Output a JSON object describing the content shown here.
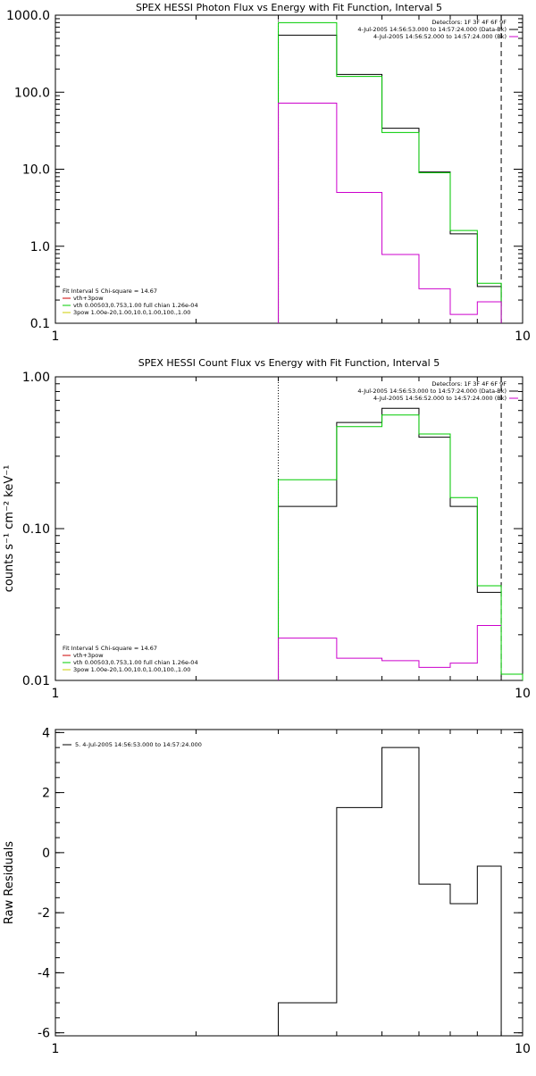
{
  "chart_data": [
    {
      "type": "line",
      "title": "SPEX HESSI Photon Flux vs Energy with Fit Function, Interval 5",
      "xscale": "log",
      "yscale": "log",
      "xlim": [
        1,
        10
      ],
      "ylim": [
        0.1,
        1000
      ],
      "x_ticks": [
        1,
        10
      ],
      "x_tick_labels": [
        "1",
        "10"
      ],
      "y_ticks": [
        0.1,
        1,
        10,
        100,
        1000
      ],
      "y_tick_labels": [
        "0.1",
        "1.0",
        "10.0",
        "100.0",
        "1000.0"
      ],
      "xlabel": "",
      "ylabel": "",
      "bin_edges": [
        3,
        4,
        5,
        6,
        7,
        8,
        9
      ],
      "fit_range_start": 3,
      "fit_range_end": 9,
      "legend_top_right": [
        "Detectors: 1F 3F 4F 6F 9F",
        "4-Jul-2005 14:56:53.000 to 14:57:24.000 (Data-Bk)",
        "4-Jul-2005 14:56:52.000 to 14:57:24.000 (Bk)"
      ],
      "legend_bottom_left": [
        "Fit Interval  5   Chi-square = 14.67",
        "vth+3pow",
        "vth 0.00503,0.753,1.00  full chian 1.26e-04",
        "3pow 1.00e-20,1.00,10.0,1.00,100.,1.00"
      ],
      "series": [
        {
          "name": "Data-Bk",
          "color": "#000000",
          "values": [
            550,
            170,
            34,
            9.2,
            1.45,
            0.3
          ]
        },
        {
          "name": "vth+3pow",
          "color": "#00cc00",
          "values": [
            800,
            160,
            30,
            9.0,
            1.6,
            0.33
          ]
        },
        {
          "name": "Bk",
          "color": "#cc00cc",
          "values": [
            72,
            5.0,
            0.78,
            0.28,
            0.13,
            0.19
          ]
        }
      ]
    },
    {
      "type": "line",
      "title": "SPEX HESSI Count Flux vs Energy with Fit Function, Interval 5",
      "xscale": "log",
      "yscale": "log",
      "xlim": [
        1,
        10
      ],
      "ylim": [
        0.01,
        1
      ],
      "x_ticks": [
        1,
        10
      ],
      "x_tick_labels": [
        "1",
        "10"
      ],
      "y_ticks": [
        0.01,
        0.1,
        1
      ],
      "y_tick_labels": [
        "0.01",
        "0.10",
        "1.00"
      ],
      "xlabel": "",
      "ylabel": "counts s⁻¹ cm⁻² keV⁻¹",
      "bin_edges": [
        3,
        4,
        5,
        6,
        7,
        8,
        9,
        10
      ],
      "fit_range_start": 3,
      "fit_range_end": 9,
      "legend_top_right": [
        "Detectors: 1F 3F 4F 6F 9F",
        "4-Jul-2005 14:56:53.000 to 14:57:24.000 (Data-Bk)",
        "4-Jul-2005 14:56:52.000 to 14:57:24.000 (Bk)"
      ],
      "legend_bottom_left": [
        "Fit Interval  5   Chi-square = 14.67",
        "vth+3pow",
        "vth 0.00503,0.753,1.00  full chian 1.26e-04",
        "3pow 1.00e-20,1.00,10.0,1.00,100.,1.00"
      ],
      "series": [
        {
          "name": "Data-Bk",
          "color": "#000000",
          "values": [
            0.14,
            0.5,
            0.62,
            0.4,
            0.14,
            0.038,
            null
          ]
        },
        {
          "name": "vth+3pow",
          "color": "#00cc00",
          "values": [
            0.21,
            0.47,
            0.56,
            0.42,
            0.16,
            0.042,
            0.011
          ]
        },
        {
          "name": "Bk",
          "color": "#cc00cc",
          "values": [
            0.019,
            0.014,
            0.0135,
            0.0122,
            0.013,
            0.023,
            null
          ]
        }
      ]
    },
    {
      "type": "line",
      "title": "",
      "xscale": "log",
      "yscale": "linear",
      "xlim": [
        1,
        10
      ],
      "ylim": [
        -6.1,
        4.1
      ],
      "x_ticks": [
        1,
        10
      ],
      "x_tick_labels": [
        "1",
        "10"
      ],
      "y_ticks": [
        -6,
        -4,
        -2,
        0,
        2,
        4
      ],
      "y_tick_labels": [
        "-6",
        "-4",
        "-2",
        "0",
        "2",
        "4"
      ],
      "xlabel": "",
      "ylabel": "Raw Residuals",
      "bin_edges": [
        3,
        4,
        5,
        6,
        7,
        8,
        9
      ],
      "legend_top_left": [
        "5.  4-Jul-2005 14:56:53.000 to 14:57:24.000"
      ],
      "series": [
        {
          "color": "#000000",
          "values": [
            -5.0,
            1.5,
            3.5,
            -1.05,
            -1.7,
            -0.45
          ]
        }
      ]
    }
  ]
}
